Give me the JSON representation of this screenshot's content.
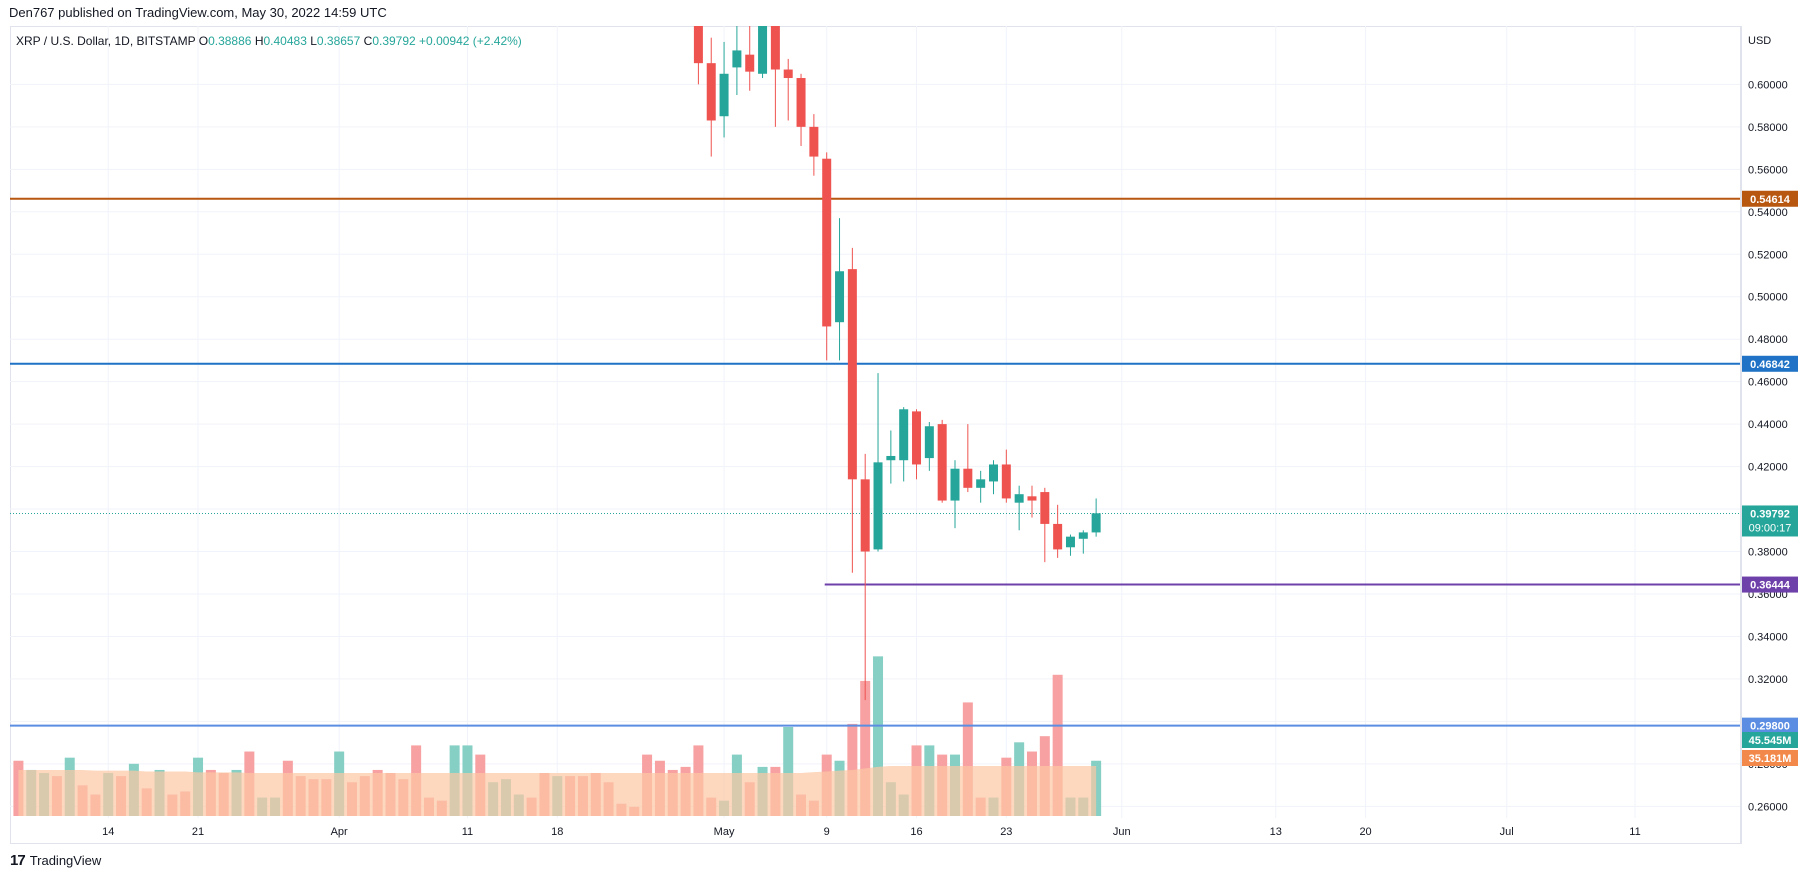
{
  "header": {
    "text": "Den767 published on TradingView.com, May 30, 2022 14:59 UTC"
  },
  "legend": {
    "symbol": "XRP / U.S. Dollar, 1D, BITSTAMP",
    "o_label": "O",
    "o": "0.38886",
    "h_label": "H",
    "h": "0.40483",
    "l_label": "L",
    "l": "0.38657",
    "c_label": "C",
    "c": "0.39792",
    "change": "+0.00942 (+2.42%)"
  },
  "footer": {
    "logo_mark": "17",
    "brand": "TradingView"
  },
  "colors": {
    "up": "#26a69a",
    "down": "#ef5350",
    "up_volume": "#86cfc4",
    "down_volume": "#f7a1a2",
    "volume_ma_fill": "#fcc8a4",
    "grid": "#f0f3fa",
    "level_orange": "#b8570f",
    "level_blue": "#1f72c6",
    "level_purple": "#6e40aa",
    "level_light_blue": "#5b8ee2",
    "current_price": "#26a69a",
    "volume_tag": "#26a69a",
    "ma_tag": "#f2894a"
  },
  "chart_data": {
    "type": "candlestick",
    "symbol": "XRP / U.S. Dollar",
    "interval": "1D",
    "exchange": "BITSTAMP",
    "currency": "USD",
    "price_axis": {
      "range": [
        0.2545,
        0.6275
      ],
      "ticks": [
        "0.60000",
        "0.58000",
        "0.56000",
        "0.54000",
        "0.52000",
        "0.50000",
        "0.48000",
        "0.46000",
        "0.44000",
        "0.42000",
        "0.40000",
        "0.38000",
        "0.36000",
        "0.34000",
        "0.32000",
        "0.30000",
        "0.28000",
        "0.26000"
      ]
    },
    "time_axis": {
      "ticks": [
        {
          "label": "14",
          "bar": 7
        },
        {
          "label": "21",
          "bar": 14
        },
        {
          "label": "Apr",
          "bar": 25
        },
        {
          "label": "11",
          "bar": 35
        },
        {
          "label": "18",
          "bar": 42
        },
        {
          "label": "May",
          "bar": 55
        },
        {
          "label": "9",
          "bar": 63
        },
        {
          "label": "16",
          "bar": 70
        },
        {
          "label": "23",
          "bar": 77
        },
        {
          "label": "Jun",
          "bar": 86
        },
        {
          "label": "13",
          "bar": 98
        },
        {
          "label": "20",
          "bar": 105
        },
        {
          "label": "Jul",
          "bar": 116
        },
        {
          "label": "11",
          "bar": 126
        }
      ],
      "bar_count_visible": 132
    },
    "candles": [
      {
        "bar": 53,
        "o": 0.64,
        "h": 0.655,
        "l": 0.6,
        "c": 0.61
      },
      {
        "bar": 54,
        "o": 0.61,
        "h": 0.622,
        "l": 0.566,
        "c": 0.583
      },
      {
        "bar": 55,
        "o": 0.585,
        "h": 0.62,
        "l": 0.575,
        "c": 0.605
      },
      {
        "bar": 56,
        "o": 0.608,
        "h": 0.64,
        "l": 0.595,
        "c": 0.616
      },
      {
        "bar": 57,
        "o": 0.614,
        "h": 0.632,
        "l": 0.597,
        "c": 0.606
      },
      {
        "bar": 58,
        "o": 0.605,
        "h": 0.64,
        "l": 0.603,
        "c": 0.64
      },
      {
        "bar": 59,
        "o": 0.64,
        "h": 0.645,
        "l": 0.58,
        "c": 0.607
      },
      {
        "bar": 60,
        "o": 0.607,
        "h": 0.612,
        "l": 0.583,
        "c": 0.603
      },
      {
        "bar": 61,
        "o": 0.603,
        "h": 0.605,
        "l": 0.571,
        "c": 0.58
      },
      {
        "bar": 62,
        "o": 0.58,
        "h": 0.586,
        "l": 0.557,
        "c": 0.566
      },
      {
        "bar": 63,
        "o": 0.565,
        "h": 0.568,
        "l": 0.47,
        "c": 0.486
      },
      {
        "bar": 64,
        "o": 0.488,
        "h": 0.537,
        "l": 0.47,
        "c": 0.512
      },
      {
        "bar": 65,
        "o": 0.513,
        "h": 0.523,
        "l": 0.37,
        "c": 0.414
      },
      {
        "bar": 66,
        "o": 0.414,
        "h": 0.426,
        "l": 0.31,
        "c": 0.38
      },
      {
        "bar": 67,
        "o": 0.381,
        "h": 0.464,
        "l": 0.38,
        "c": 0.422
      },
      {
        "bar": 68,
        "o": 0.423,
        "h": 0.437,
        "l": 0.412,
        "c": 0.425
      },
      {
        "bar": 69,
        "o": 0.423,
        "h": 0.448,
        "l": 0.413,
        "c": 0.447
      },
      {
        "bar": 70,
        "o": 0.446,
        "h": 0.447,
        "l": 0.414,
        "c": 0.421
      },
      {
        "bar": 71,
        "o": 0.424,
        "h": 0.441,
        "l": 0.418,
        "c": 0.439
      },
      {
        "bar": 72,
        "o": 0.44,
        "h": 0.442,
        "l": 0.403,
        "c": 0.404
      },
      {
        "bar": 73,
        "o": 0.404,
        "h": 0.423,
        "l": 0.391,
        "c": 0.419
      },
      {
        "bar": 74,
        "o": 0.419,
        "h": 0.44,
        "l": 0.408,
        "c": 0.41
      },
      {
        "bar": 75,
        "o": 0.41,
        "h": 0.418,
        "l": 0.403,
        "c": 0.414
      },
      {
        "bar": 76,
        "o": 0.413,
        "h": 0.423,
        "l": 0.407,
        "c": 0.421
      },
      {
        "bar": 77,
        "o": 0.421,
        "h": 0.428,
        "l": 0.403,
        "c": 0.405
      },
      {
        "bar": 78,
        "o": 0.403,
        "h": 0.411,
        "l": 0.39,
        "c": 0.407
      },
      {
        "bar": 79,
        "o": 0.406,
        "h": 0.411,
        "l": 0.396,
        "c": 0.404
      },
      {
        "bar": 80,
        "o": 0.408,
        "h": 0.41,
        "l": 0.375,
        "c": 0.393
      },
      {
        "bar": 81,
        "o": 0.393,
        "h": 0.402,
        "l": 0.377,
        "c": 0.381
      },
      {
        "bar": 82,
        "o": 0.382,
        "h": 0.388,
        "l": 0.378,
        "c": 0.387
      },
      {
        "bar": 83,
        "o": 0.386,
        "h": 0.39,
        "l": 0.379,
        "c": 0.389
      },
      {
        "bar": 84,
        "o": 0.389,
        "h": 0.405,
        "l": 0.387,
        "c": 0.398
      }
    ],
    "volume": [
      {
        "bar": 0,
        "v": 18,
        "up": false
      },
      {
        "bar": 1,
        "v": 15,
        "up": true
      },
      {
        "bar": 2,
        "v": 14,
        "up": true
      },
      {
        "bar": 3,
        "v": 13,
        "up": false
      },
      {
        "bar": 4,
        "v": 19,
        "up": true
      },
      {
        "bar": 5,
        "v": 10,
        "up": false
      },
      {
        "bar": 6,
        "v": 7,
        "up": false
      },
      {
        "bar": 7,
        "v": 14,
        "up": true
      },
      {
        "bar": 8,
        "v": 13,
        "up": false
      },
      {
        "bar": 9,
        "v": 17,
        "up": true
      },
      {
        "bar": 10,
        "v": 9,
        "up": false
      },
      {
        "bar": 11,
        "v": 15,
        "up": true
      },
      {
        "bar": 12,
        "v": 7,
        "up": false
      },
      {
        "bar": 13,
        "v": 8,
        "up": false
      },
      {
        "bar": 14,
        "v": 19,
        "up": true
      },
      {
        "bar": 15,
        "v": 15,
        "up": false
      },
      {
        "bar": 16,
        "v": 14,
        "up": false
      },
      {
        "bar": 17,
        "v": 15,
        "up": true
      },
      {
        "bar": 18,
        "v": 21,
        "up": false
      },
      {
        "bar": 19,
        "v": 6,
        "up": true
      },
      {
        "bar": 20,
        "v": 6,
        "up": true
      },
      {
        "bar": 21,
        "v": 18,
        "up": false
      },
      {
        "bar": 22,
        "v": 13,
        "up": false
      },
      {
        "bar": 23,
        "v": 12,
        "up": false
      },
      {
        "bar": 24,
        "v": 12,
        "up": false
      },
      {
        "bar": 25,
        "v": 21,
        "up": true
      },
      {
        "bar": 26,
        "v": 11,
        "up": false
      },
      {
        "bar": 27,
        "v": 13,
        "up": false
      },
      {
        "bar": 28,
        "v": 15,
        "up": false
      },
      {
        "bar": 29,
        "v": 14,
        "up": false
      },
      {
        "bar": 30,
        "v": 12,
        "up": false
      },
      {
        "bar": 31,
        "v": 23,
        "up": false
      },
      {
        "bar": 32,
        "v": 6,
        "up": false
      },
      {
        "bar": 33,
        "v": 5,
        "up": false
      },
      {
        "bar": 34,
        "v": 23,
        "up": true
      },
      {
        "bar": 35,
        "v": 23,
        "up": true
      },
      {
        "bar": 36,
        "v": 20,
        "up": false
      },
      {
        "bar": 37,
        "v": 11,
        "up": true
      },
      {
        "bar": 38,
        "v": 12,
        "up": true
      },
      {
        "bar": 39,
        "v": 7,
        "up": true
      },
      {
        "bar": 40,
        "v": 6,
        "up": false
      },
      {
        "bar": 41,
        "v": 14,
        "up": false
      },
      {
        "bar": 42,
        "v": 13,
        "up": true
      },
      {
        "bar": 43,
        "v": 13,
        "up": false
      },
      {
        "bar": 44,
        "v": 13,
        "up": false
      },
      {
        "bar": 45,
        "v": 14,
        "up": false
      },
      {
        "bar": 46,
        "v": 11,
        "up": false
      },
      {
        "bar": 47,
        "v": 4,
        "up": false
      },
      {
        "bar": 48,
        "v": 3,
        "up": false
      },
      {
        "bar": 49,
        "v": 20,
        "up": false
      },
      {
        "bar": 50,
        "v": 18,
        "up": false
      },
      {
        "bar": 51,
        "v": 15,
        "up": false
      },
      {
        "bar": 52,
        "v": 16,
        "up": false
      },
      {
        "bar": 53,
        "v": 23,
        "up": false
      },
      {
        "bar": 54,
        "v": 6,
        "up": false
      },
      {
        "bar": 55,
        "v": 5,
        "up": true
      },
      {
        "bar": 56,
        "v": 20,
        "up": true
      },
      {
        "bar": 57,
        "v": 11,
        "up": false
      },
      {
        "bar": 58,
        "v": 16,
        "up": true
      },
      {
        "bar": 59,
        "v": 16,
        "up": false
      },
      {
        "bar": 60,
        "v": 29,
        "up": true
      },
      {
        "bar": 61,
        "v": 7,
        "up": false
      },
      {
        "bar": 62,
        "v": 5,
        "up": false
      },
      {
        "bar": 63,
        "v": 20,
        "up": false
      },
      {
        "bar": 64,
        "v": 18,
        "up": true
      },
      {
        "bar": 65,
        "v": 30,
        "up": false
      },
      {
        "bar": 66,
        "v": 44,
        "up": false
      },
      {
        "bar": 67,
        "v": 52,
        "up": true
      },
      {
        "bar": 68,
        "v": 11,
        "up": true
      },
      {
        "bar": 69,
        "v": 7,
        "up": true
      },
      {
        "bar": 70,
        "v": 23,
        "up": false
      },
      {
        "bar": 71,
        "v": 23,
        "up": true
      },
      {
        "bar": 72,
        "v": 20,
        "up": false
      },
      {
        "bar": 73,
        "v": 20,
        "up": true
      },
      {
        "bar": 74,
        "v": 37,
        "up": false
      },
      {
        "bar": 75,
        "v": 6,
        "up": false
      },
      {
        "bar": 76,
        "v": 6,
        "up": true
      },
      {
        "bar": 77,
        "v": 19,
        "up": false
      },
      {
        "bar": 78,
        "v": 24,
        "up": true
      },
      {
        "bar": 79,
        "v": 21,
        "up": false
      },
      {
        "bar": 80,
        "v": 26,
        "up": false
      },
      {
        "bar": 81,
        "v": 46,
        "up": false
      },
      {
        "bar": 82,
        "v": 6,
        "up": true
      },
      {
        "bar": 83,
        "v": 6,
        "up": true
      },
      {
        "bar": 84,
        "v": 18,
        "up": true
      }
    ],
    "volume_ma": [
      15,
      15,
      15,
      15,
      15,
      15,
      14.8,
      14.8,
      14.8,
      14.8,
      14.5,
      14.5,
      14.5,
      14.5,
      14.2,
      14.2,
      14.2,
      14.2,
      14,
      14,
      14,
      14,
      14,
      14,
      14,
      14,
      14,
      14,
      14,
      14,
      14,
      14,
      14,
      14,
      14,
      14,
      14,
      14,
      14,
      14,
      14,
      14,
      14,
      14,
      14,
      14,
      14,
      14,
      14,
      14,
      14,
      14,
      14,
      14,
      14,
      14,
      14,
      14,
      14,
      14,
      14,
      14,
      14.3,
      14.5,
      14.8,
      15,
      15.5,
      16,
      16.3,
      16.3,
      16.3,
      16.3,
      16.3,
      16.3,
      16.3,
      16.3,
      16.3,
      16.3,
      16.3,
      16.3,
      16.3,
      16.3,
      16.3,
      16.3,
      16.3
    ],
    "volume_axis_max": 70,
    "horizontal_levels": [
      {
        "price": 0.54614,
        "label": "0.54614",
        "color": "#b8570f",
        "from_bar": 0
      },
      {
        "price": 0.46842,
        "label": "0.46842",
        "color": "#1f72c6",
        "from_bar": 0
      },
      {
        "price": 0.36444,
        "label": "0.36444",
        "color": "#6e40aa",
        "from_bar": 63
      },
      {
        "price": 0.298,
        "label": "0.29800",
        "color": "#5b8ee2",
        "from_bar": 0
      }
    ],
    "current_price": {
      "price": 0.39792,
      "label": "0.39792",
      "countdown": "09:00:17"
    },
    "volume_tags": [
      {
        "label": "45.545M",
        "color": "#26a69a"
      },
      {
        "label": "35.181M",
        "color": "#f2894a"
      }
    ]
  }
}
